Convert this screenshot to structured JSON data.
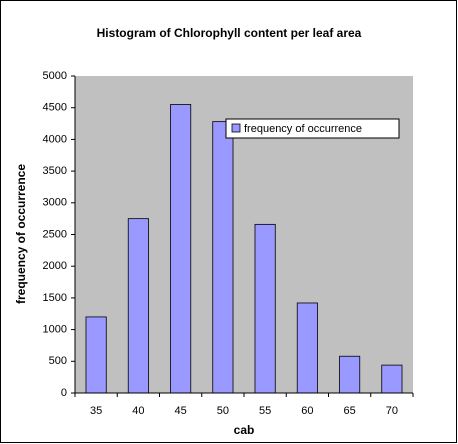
{
  "chart_data": {
    "type": "bar",
    "title": "Histogram of Chlorophyll content per leaf area",
    "x_label": "cab",
    "y_label": "frequency of occurrence",
    "categories": [
      "35",
      "40",
      "45",
      "50",
      "55",
      "60",
      "65",
      "70"
    ],
    "series": [
      {
        "name": "frequency of occurrence",
        "color": "#9999ff",
        "values": [
          1200,
          2750,
          4550,
          4280,
          2660,
          1420,
          580,
          440
        ]
      }
    ],
    "ylim": [
      0,
      5000
    ],
    "yticks": [
      0,
      500,
      1000,
      1500,
      2000,
      2500,
      3000,
      3500,
      4000,
      4500,
      5000
    ],
    "grid": false,
    "legend": "top-right"
  }
}
